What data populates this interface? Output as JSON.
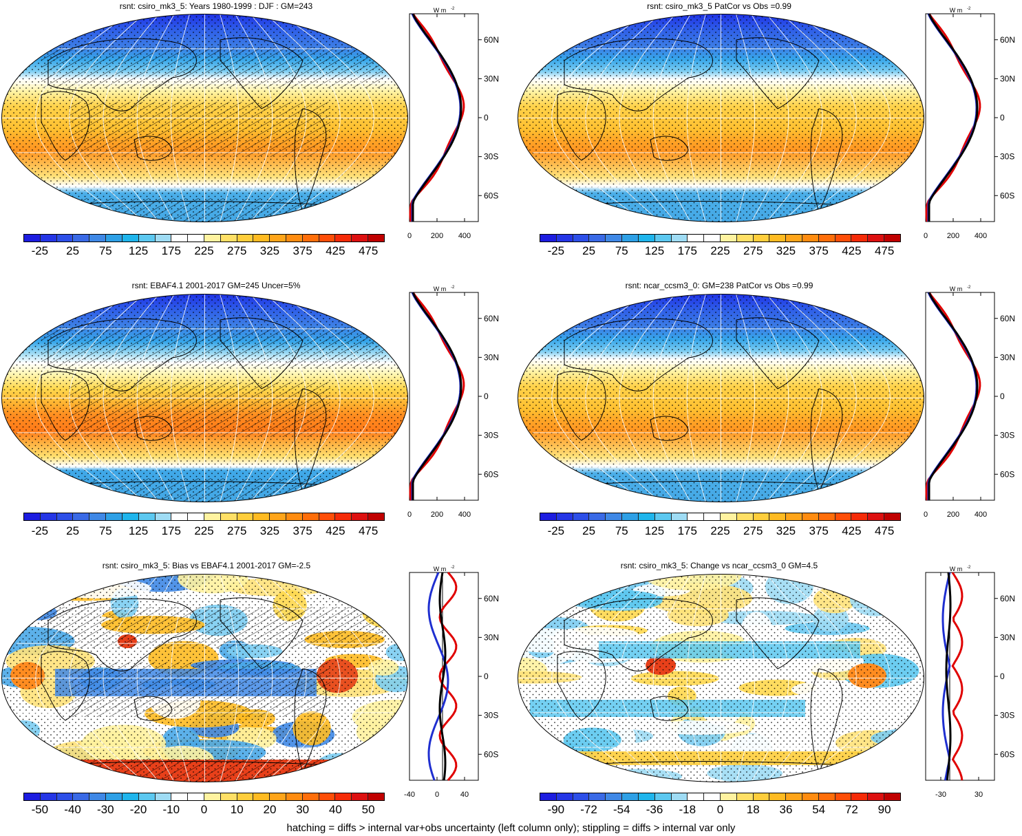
{
  "panels": [
    {
      "title": "rsnt: csiro_mk3_5: Years 1980-1999 : DJF : GM=243",
      "kind": "abs",
      "hatch": true,
      "profile_ticks": [
        "0",
        "200",
        "400"
      ],
      "profile_unit": "W m",
      "profile_unit_sup": "-2"
    },
    {
      "title": "rsnt: csiro_mk3_5 PatCor vs Obs =0.99",
      "kind": "abs",
      "hatch": false,
      "profile_ticks": [
        "0",
        "200",
        "400"
      ],
      "profile_unit": "W m",
      "profile_unit_sup": "-2"
    },
    {
      "title": "rsnt: EBAF4.1 2001-2017 GM=245 Uncer=5%",
      "kind": "abs",
      "hatch": true,
      "profile_ticks": [
        "0",
        "200",
        "400"
      ],
      "profile_unit": "W m",
      "profile_unit_sup": "-2"
    },
    {
      "title": "rsnt: ncar_ccsm3_0: GM=238 PatCor vs Obs =0.99",
      "kind": "abs",
      "hatch": false,
      "profile_ticks": [
        "0",
        "200",
        "400"
      ],
      "profile_unit": "W m",
      "profile_unit_sup": "-2"
    },
    {
      "title": "rsnt: csiro_mk3_5: Bias vs EBAF4.1 2001-2017 GM=-2.5",
      "kind": "bias",
      "hatch": true,
      "profile_ticks": [
        "-40",
        "0",
        "40"
      ],
      "profile_unit": "W m",
      "profile_unit_sup": "-2"
    },
    {
      "title": "rsnt: csiro_mk3_5: Change vs ncar_ccsm3_0 GM=4.5",
      "kind": "change",
      "hatch": false,
      "profile_ticks": [
        "-30",
        "30"
      ],
      "profile_unit": "W m",
      "profile_unit_sup": "-2"
    }
  ],
  "lat_labels": [
    "60N",
    "30N",
    "0",
    "30S",
    "60S"
  ],
  "colorbars": {
    "abs": {
      "labels": [
        "-25",
        "25",
        "75",
        "125",
        "175",
        "225",
        "275",
        "325",
        "375",
        "425",
        "475"
      ],
      "colors": [
        "#1d1de0",
        "#2536e6",
        "#2d4fe8",
        "#3a6ae6",
        "#3f88e6",
        "#2ea0e6",
        "#1fb5ec",
        "#5cc8f0",
        "#9fdcf4",
        "#ffffff",
        "#ffffff",
        "#fff3a0",
        "#ffe066",
        "#ffce3c",
        "#ffbb22",
        "#ffa51a",
        "#ff8c10",
        "#ff6e0a",
        "#ff4e08",
        "#f52b08",
        "#dd1010",
        "#c00000"
      ]
    },
    "bias": {
      "labels": [
        "-50",
        "-40",
        "-30",
        "-20",
        "-10",
        "0",
        "10",
        "20",
        "30",
        "40",
        "50"
      ],
      "colors": [
        "#1d1de0",
        "#2536e6",
        "#2d4fe8",
        "#3a6ae6",
        "#3f88e6",
        "#2ea0e6",
        "#1fb5ec",
        "#5cc8f0",
        "#9fdcf4",
        "#ffffff",
        "#ffffff",
        "#fff3a0",
        "#ffe066",
        "#ffce3c",
        "#ffbb22",
        "#ffa51a",
        "#ff8c10",
        "#ff6e0a",
        "#ff4e08",
        "#f52b08",
        "#dd1010",
        "#c00000"
      ]
    },
    "change": {
      "labels": [
        "-90",
        "-72",
        "-54",
        "-36",
        "-18",
        "0",
        "18",
        "36",
        "54",
        "72",
        "90"
      ],
      "colors": [
        "#1d1de0",
        "#2536e6",
        "#2d4fe8",
        "#3a6ae6",
        "#3f88e6",
        "#2ea0e6",
        "#1fb5ec",
        "#5cc8f0",
        "#9fdcf4",
        "#ffffff",
        "#ffffff",
        "#fff3a0",
        "#ffe066",
        "#ffce3c",
        "#ffbb22",
        "#ffa51a",
        "#ff8c10",
        "#ff6e0a",
        "#ff4e08",
        "#f52b08",
        "#dd1010",
        "#c00000"
      ]
    }
  },
  "footer": "hatching = diffs > internal var+obs uncertainty (left column only); stippling = diffs > internal var only"
}
